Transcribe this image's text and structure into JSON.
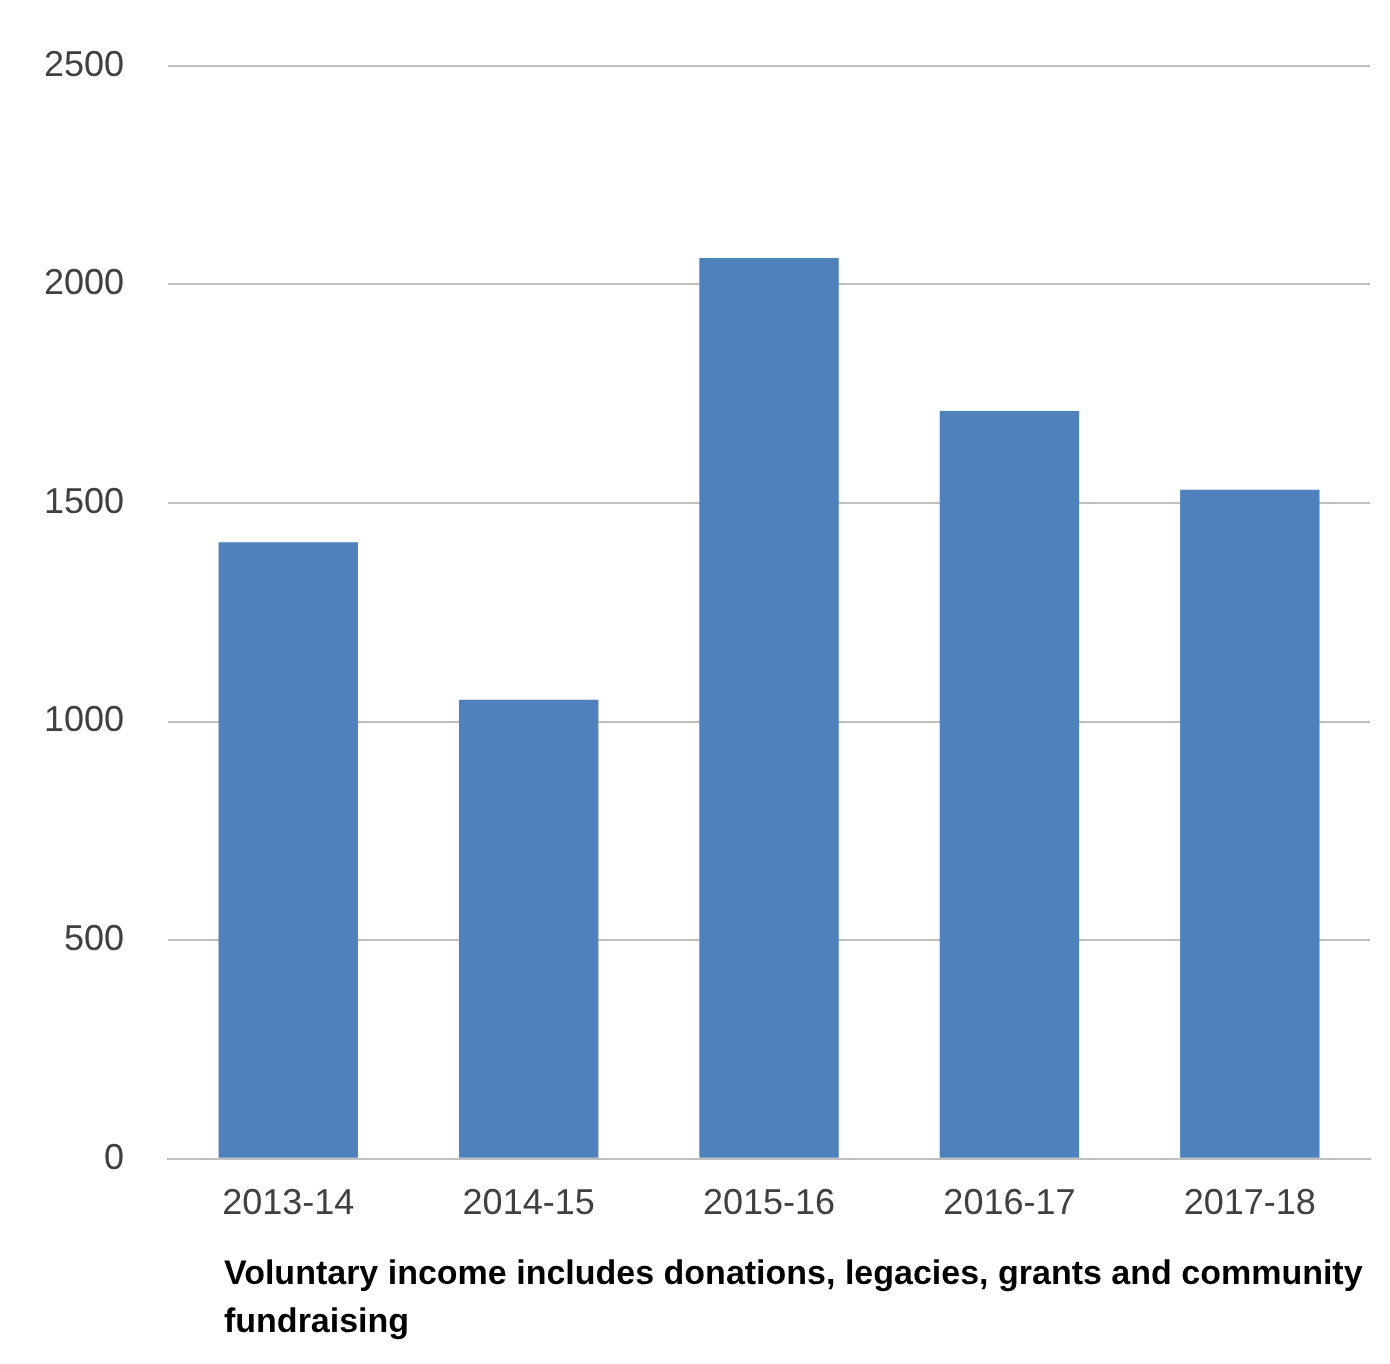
{
  "chart_data": {
    "type": "bar",
    "xlabel": "Voluntary income includes donations, legacies, grants and community fundraising",
    "categories": [
      "2013-14",
      "2014-15",
      "2015-16",
      "2016-17",
      "2017-18"
    ],
    "values": [
      1410,
      1050,
      2060,
      1710,
      1530
    ],
    "color": "#4f81bd",
    "ylim": [
      0,
      2500
    ],
    "yticks": [
      0,
      500,
      1000,
      1500,
      2000,
      2500
    ],
    "grid": "y",
    "legend": false
  }
}
